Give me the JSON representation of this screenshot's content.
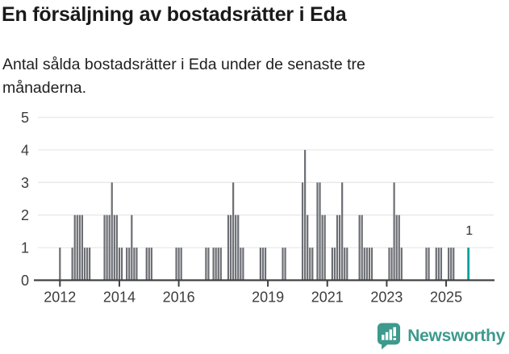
{
  "title": "En försäljning av bostadsrätter i Eda",
  "subtitle": "Antal sålda bostadsrätter i Eda under de senaste tre månaderna.",
  "chart_data": {
    "type": "bar",
    "title": "En försäljning av bostadsrätter i Eda",
    "xlabel": "",
    "ylabel": "",
    "ylim": [
      0,
      5
    ],
    "yticks": [
      0,
      1,
      2,
      3,
      4,
      5
    ],
    "xticks": [
      2012,
      2014,
      2016,
      2019,
      2021,
      2023,
      2025
    ],
    "grid": true,
    "bar_color": "#6b6e73",
    "highlight_color": "#00a39e",
    "x_unit": "month",
    "note_all_other_months": 0,
    "points": [
      {
        "x": "2012-01",
        "y": 1
      },
      {
        "x": "2012-06",
        "y": 1
      },
      {
        "x": "2012-07",
        "y": 2
      },
      {
        "x": "2012-08",
        "y": 2
      },
      {
        "x": "2012-09",
        "y": 2
      },
      {
        "x": "2012-10",
        "y": 2
      },
      {
        "x": "2012-11",
        "y": 1
      },
      {
        "x": "2012-12",
        "y": 1
      },
      {
        "x": "2013-01",
        "y": 1
      },
      {
        "x": "2013-07",
        "y": 2
      },
      {
        "x": "2013-08",
        "y": 2
      },
      {
        "x": "2013-09",
        "y": 2
      },
      {
        "x": "2013-10",
        "y": 3
      },
      {
        "x": "2013-11",
        "y": 2
      },
      {
        "x": "2013-12",
        "y": 2
      },
      {
        "x": "2014-01",
        "y": 1
      },
      {
        "x": "2014-02",
        "y": 1
      },
      {
        "x": "2014-04",
        "y": 1
      },
      {
        "x": "2014-05",
        "y": 1
      },
      {
        "x": "2014-06",
        "y": 2
      },
      {
        "x": "2014-07",
        "y": 1
      },
      {
        "x": "2014-08",
        "y": 1
      },
      {
        "x": "2014-12",
        "y": 1
      },
      {
        "x": "2015-01",
        "y": 1
      },
      {
        "x": "2015-02",
        "y": 1
      },
      {
        "x": "2015-12",
        "y": 1
      },
      {
        "x": "2016-01",
        "y": 1
      },
      {
        "x": "2016-02",
        "y": 1
      },
      {
        "x": "2016-12",
        "y": 1
      },
      {
        "x": "2017-01",
        "y": 1
      },
      {
        "x": "2017-03",
        "y": 1
      },
      {
        "x": "2017-04",
        "y": 1
      },
      {
        "x": "2017-05",
        "y": 1
      },
      {
        "x": "2017-06",
        "y": 1
      },
      {
        "x": "2017-09",
        "y": 2
      },
      {
        "x": "2017-10",
        "y": 2
      },
      {
        "x": "2017-11",
        "y": 3
      },
      {
        "x": "2017-12",
        "y": 2
      },
      {
        "x": "2018-01",
        "y": 2
      },
      {
        "x": "2018-02",
        "y": 1
      },
      {
        "x": "2018-03",
        "y": 1
      },
      {
        "x": "2018-10",
        "y": 1
      },
      {
        "x": "2018-11",
        "y": 1
      },
      {
        "x": "2018-12",
        "y": 1
      },
      {
        "x": "2019-07",
        "y": 1
      },
      {
        "x": "2019-08",
        "y": 1
      },
      {
        "x": "2020-03",
        "y": 3
      },
      {
        "x": "2020-04",
        "y": 4
      },
      {
        "x": "2020-05",
        "y": 2
      },
      {
        "x": "2020-06",
        "y": 1
      },
      {
        "x": "2020-07",
        "y": 1
      },
      {
        "x": "2020-09",
        "y": 3
      },
      {
        "x": "2020-10",
        "y": 3
      },
      {
        "x": "2020-11",
        "y": 2
      },
      {
        "x": "2020-12",
        "y": 2
      },
      {
        "x": "2021-03",
        "y": 1
      },
      {
        "x": "2021-04",
        "y": 1
      },
      {
        "x": "2021-05",
        "y": 2
      },
      {
        "x": "2021-06",
        "y": 2
      },
      {
        "x": "2021-07",
        "y": 3
      },
      {
        "x": "2021-08",
        "y": 1
      },
      {
        "x": "2021-09",
        "y": 1
      },
      {
        "x": "2022-02",
        "y": 2
      },
      {
        "x": "2022-03",
        "y": 2
      },
      {
        "x": "2022-04",
        "y": 1
      },
      {
        "x": "2022-05",
        "y": 1
      },
      {
        "x": "2022-06",
        "y": 1
      },
      {
        "x": "2022-07",
        "y": 1
      },
      {
        "x": "2023-02",
        "y": 1
      },
      {
        "x": "2023-03",
        "y": 1
      },
      {
        "x": "2023-04",
        "y": 3
      },
      {
        "x": "2023-05",
        "y": 2
      },
      {
        "x": "2023-06",
        "y": 2
      },
      {
        "x": "2023-07",
        "y": 1
      },
      {
        "x": "2024-05",
        "y": 1
      },
      {
        "x": "2024-06",
        "y": 1
      },
      {
        "x": "2024-09",
        "y": 1
      },
      {
        "x": "2024-10",
        "y": 1
      },
      {
        "x": "2024-11",
        "y": 1
      },
      {
        "x": "2025-02",
        "y": 1
      },
      {
        "x": "2025-03",
        "y": 1
      },
      {
        "x": "2025-04",
        "y": 1
      }
    ],
    "highlight_point": {
      "x": "2025-10",
      "y": 1,
      "label": "1"
    }
  },
  "footer": {
    "brand": "Newsworthy"
  },
  "colors": {
    "title": "#1a1a1a",
    "axis_labels": "#3d3d3d",
    "gridline": "#e8e8e8",
    "axis_line": "#3f3f3f",
    "bar": "#6b6e73",
    "highlight_bar": "#00a39e",
    "brand_teal": "#3d9a8d"
  }
}
